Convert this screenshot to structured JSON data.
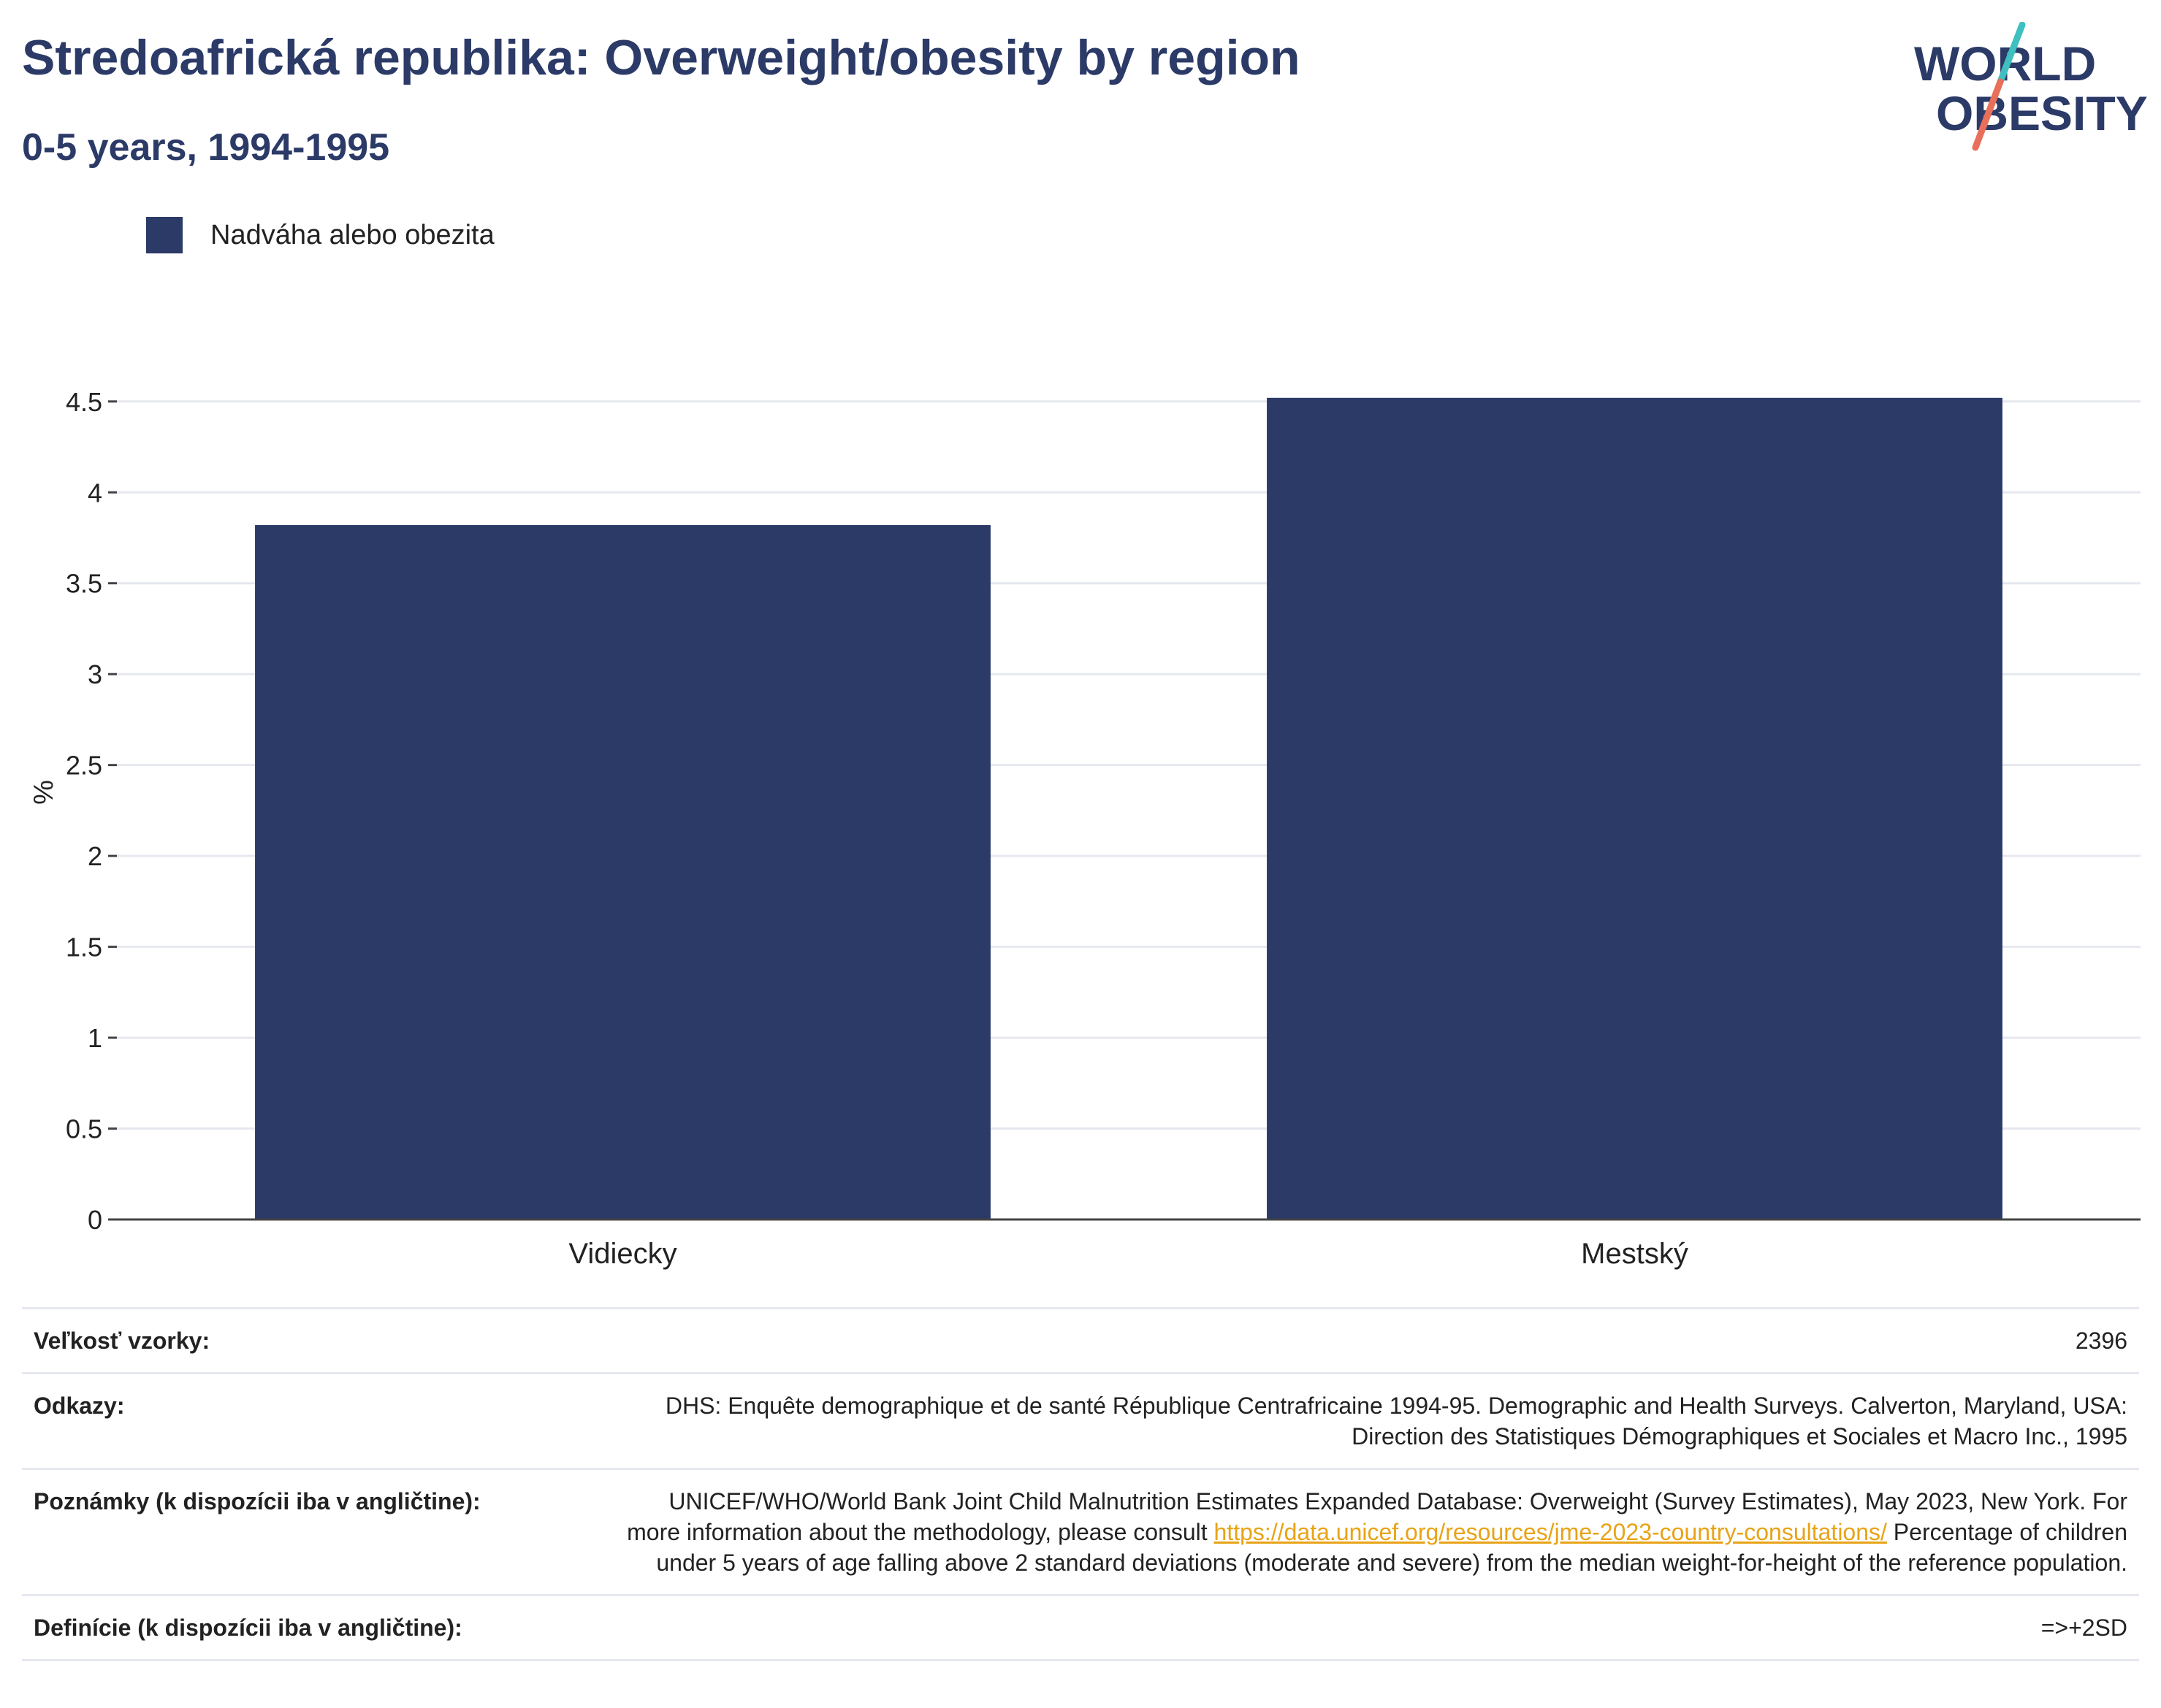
{
  "header": {
    "title": "Stredoafrická republika: Overweight/obesity by region",
    "subtitle": "0-5 years, 1994-1995"
  },
  "logo": {
    "line1": "WORLD",
    "line2": "OBESITY",
    "colors": {
      "text": "#2b3a67",
      "slash_top": "#3fbfbf",
      "slash_bottom": "#e8705a"
    }
  },
  "chart_data": {
    "type": "bar",
    "categories": [
      "Vidiecky",
      "Mestský"
    ],
    "series": [
      {
        "name": "Nadváha alebo obezita",
        "values": [
          3.82,
          4.52
        ],
        "color": "#2b3a67"
      }
    ],
    "ylabel": "%",
    "ylim": [
      0,
      4.7
    ],
    "yticks": [
      {
        "value": 0,
        "label": "0"
      },
      {
        "value": 0.5,
        "label": "0.5"
      },
      {
        "value": 1,
        "label": "1"
      },
      {
        "value": 1.5,
        "label": "1.5"
      },
      {
        "value": 2,
        "label": "2"
      },
      {
        "value": 2.5,
        "label": "2.5"
      },
      {
        "value": 3,
        "label": "3"
      },
      {
        "value": 3.5,
        "label": "3.5"
      },
      {
        "value": 4,
        "label": "4"
      },
      {
        "value": 4.5,
        "label": "4.5"
      }
    ],
    "grid": true,
    "legend_position": "top-left"
  },
  "info": {
    "rows": [
      {
        "label": "Veľkosť vzorky:",
        "value": "2396"
      },
      {
        "label": "Odkazy:",
        "value": "DHS: Enquête demographique et de santé République Centrafricaine 1994-95. Demographic and Health Surveys. Calverton, Maryland, USA: Direction des Statistiques Démographiques et Sociales et Macro Inc., 1995"
      },
      {
        "label": "Poznámky (k dispozícii iba v angličtine):",
        "value_before_link": "UNICEF/WHO/World Bank Joint Child Malnutrition Estimates Expanded Database: Overweight (Survey Estimates), May 2023, New York. For more information about the methodology, please consult ",
        "link": "https://data.unicef.org/resources/jme-2023-country-consultations/",
        "value_after_link": " Percentage of children under 5 years of age falling above 2 standard deviations (moderate and severe) from the median weight-for-height of the reference population."
      },
      {
        "label": "Definície (k dispozícii iba v angličtine):",
        "value": "=>+2SD"
      }
    ]
  }
}
